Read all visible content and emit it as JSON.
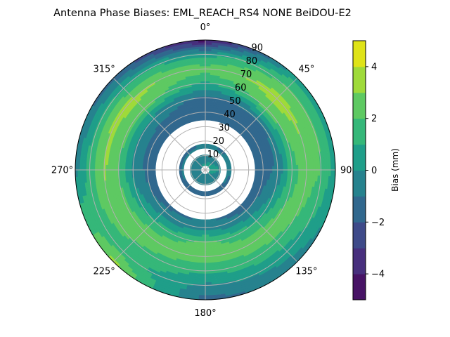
{
  "chart_data": {
    "type": "heatmap",
    "subtype": "polar-contour",
    "title": "Antenna Phase Biases: EML_REACH_RS4   NONE BeiDOU-E2",
    "angular_ticks": [
      "0°",
      "45°",
      "90°",
      "135°",
      "180°",
      "225°",
      "270°",
      "315°"
    ],
    "angular_tick_values": [
      0,
      45,
      90,
      135,
      180,
      225,
      270,
      315
    ],
    "radial_ticks": [
      "10",
      "20",
      "30",
      "40",
      "50",
      "60",
      "70",
      "80",
      "90"
    ],
    "radial_tick_values": [
      10,
      20,
      30,
      40,
      50,
      60,
      70,
      80,
      90
    ],
    "rlim": [
      0,
      90
    ],
    "grid": true,
    "colorbar": {
      "label": "Bias (mm)",
      "levels": [
        -5,
        -4,
        -3,
        -2,
        -1,
        0,
        1,
        2,
        3,
        4,
        5
      ],
      "ticks": [
        "-4",
        "-2",
        "0",
        "2",
        "4"
      ],
      "tick_values": [
        -4,
        -2,
        0,
        2,
        4
      ],
      "colors": [
        "#471365",
        "#472f7d",
        "#3e4a89",
        "#31688e",
        "#26828e",
        "#1f9e89",
        "#35b779",
        "#5ec962",
        "#9fda3a",
        "#dfe318"
      ]
    },
    "grid_r": [
      0,
      10,
      20,
      30,
      40,
      50,
      60,
      70,
      80,
      90
    ],
    "grid_az": [
      0,
      45,
      90,
      135,
      180,
      225,
      270,
      315
    ],
    "values": [
      [
        0.3,
        -0.3,
        -1.2,
        -1.5,
        -1.5,
        -1.2,
        0.8,
        2.5,
        0.5,
        -4.5
      ],
      [
        0.4,
        -0.3,
        -1.3,
        -1.6,
        -1.6,
        -1.0,
        2.5,
        3.5,
        2.2,
        0.5
      ],
      [
        0.6,
        0.0,
        -1.2,
        -1.5,
        -1.5,
        -0.8,
        1.5,
        2.6,
        2.0,
        0.5
      ],
      [
        0.3,
        -0.5,
        -1.5,
        -1.5,
        -1.0,
        1.0,
        2.6,
        1.8,
        0.5,
        -0.5
      ],
      [
        0.2,
        -0.6,
        -1.5,
        -1.4,
        -0.5,
        2.2,
        2.5,
        1.2,
        -0.2,
        -1.5
      ],
      [
        0.2,
        -0.5,
        -1.5,
        -1.5,
        -0.8,
        1.2,
        2.6,
        2.0,
        1.5,
        3.5
      ],
      [
        0.2,
        -0.4,
        -1.3,
        -1.5,
        -1.3,
        -0.3,
        2.0,
        3.2,
        1.5,
        -0.5
      ],
      [
        0.2,
        -0.4,
        -1.3,
        -1.5,
        -1.4,
        -0.5,
        2.6,
        3.3,
        1.0,
        -1.5
      ]
    ]
  }
}
